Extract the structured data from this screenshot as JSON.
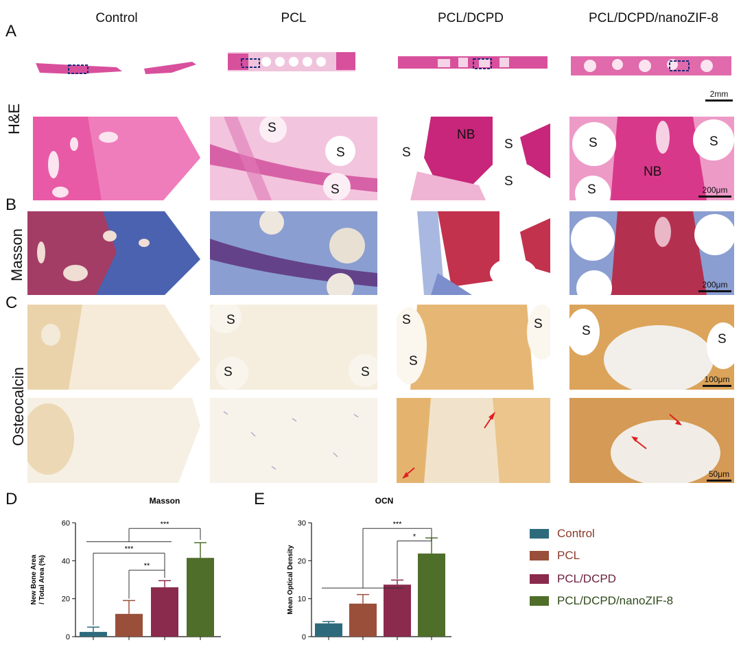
{
  "colors": {
    "control": "#2d6b7c",
    "pcl": "#9a4f3a",
    "dcpd": "#8a2a4c",
    "zif": "#4f6e2a",
    "he_bone": "#d63f8c",
    "he_tissue": "#f1b9d8",
    "masson_blue": "#4a62b0",
    "masson_red": "#c2324d",
    "ocn_brown": "#d9a45a"
  },
  "columns": [
    "Control",
    "PCL",
    "PCL/DCPD",
    "PCL/DCPD/nanoZIF-8"
  ],
  "panel_letters": [
    "A",
    "B",
    "C",
    "D",
    "E"
  ],
  "row_labels": [
    "H&E",
    "Masson",
    "Osteocalcin"
  ],
  "scales": {
    "overview": "2mm",
    "he": "200μm",
    "masson": "200μm",
    "ocn_low": "100μm",
    "ocn_high": "50μm"
  },
  "tissue_labels": {
    "s": "S",
    "nb": "NB"
  },
  "chart_data": [
    {
      "type": "bar",
      "title": "Masson",
      "ylabel": "New Bone Area / Total Area (%)",
      "ylim": [
        0,
        60
      ],
      "yticks": [
        0,
        20,
        40,
        60
      ],
      "categories": [
        "Control",
        "PCL",
        "PCL/DCPD",
        "PCL/DCPD/nanoZIF-8"
      ],
      "values": [
        2.5,
        12,
        26,
        41.5
      ],
      "errors": [
        2.5,
        7,
        3.5,
        8
      ],
      "significance": [
        {
          "from": "Control+PCL+PCL/DCPD",
          "to": "PCL/DCPD/nanoZIF-8",
          "label": "***"
        },
        {
          "from": "Control",
          "to": "PCL/DCPD",
          "label": "***"
        },
        {
          "from": "PCL",
          "to": "PCL/DCPD",
          "label": "**"
        }
      ]
    },
    {
      "type": "bar",
      "title": "OCN",
      "ylabel": "Mean Optical Density",
      "ylim": [
        0,
        30
      ],
      "yticks": [
        0,
        10,
        20,
        30
      ],
      "categories": [
        "Control",
        "PCL",
        "PCL/DCPD",
        "PCL/DCPD/nanoZIF-8"
      ],
      "values": [
        3.5,
        8.7,
        13.7,
        21.9
      ],
      "errors": [
        0.5,
        2.4,
        1.2,
        4.1
      ],
      "significance": [
        {
          "from": "Control+PCL+PCL/DCPD",
          "to": "PCL/DCPD/nanoZIF-8",
          "label": "***"
        },
        {
          "from": "PCL/DCPD",
          "to": "PCL/DCPD/nanoZIF-8",
          "label": "*"
        }
      ]
    }
  ]
}
